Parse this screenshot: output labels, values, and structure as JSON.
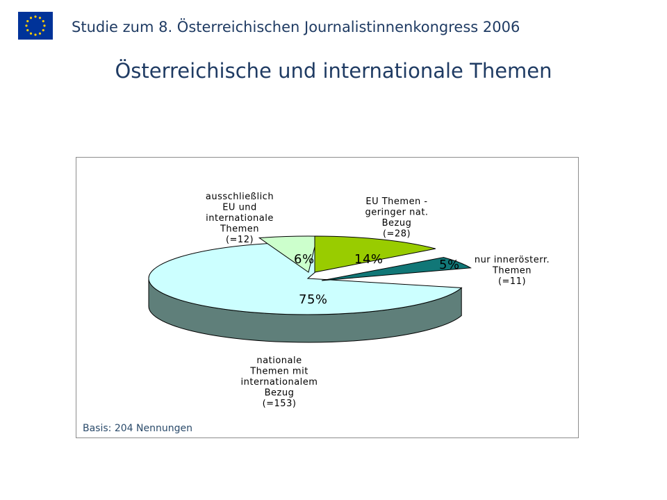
{
  "header": {
    "title": "Studie zum 8. Österreichischen Journalistinnenkongress  2006",
    "flag_icon": "eu-flag-icon"
  },
  "slide": {
    "title": "Österreichische und internationale Themen"
  },
  "colors": {
    "title": "#1f3b63",
    "national": "#ccffff",
    "national_side": "#5f7f7a",
    "international": "#ccffcc",
    "international_side": "#4b6b4b",
    "eu": "#99cc00",
    "eu_side": "#5a7a00",
    "inner": "#117777",
    "inner_side": "#003c3c"
  },
  "chart_data": {
    "type": "pie",
    "title": "",
    "slices": [
      {
        "key": "national",
        "label": [
          "nationale",
          "Themen mit",
          "internationalem",
          "Bezug",
          "(=153)"
        ],
        "count": 153,
        "percent": 75,
        "percent_label": "75%"
      },
      {
        "key": "international",
        "label": [
          "ausschließlich",
          "EU und",
          "internationale",
          "Themen",
          "(=12)"
        ],
        "count": 12,
        "percent": 6,
        "percent_label": "6%"
      },
      {
        "key": "eu",
        "label": [
          "EU Themen -",
          "geringer nat.",
          "Bezug",
          "(=28)"
        ],
        "count": 28,
        "percent": 14,
        "percent_label": "14%"
      },
      {
        "key": "inner",
        "label": [
          "nur innerösterr.",
          "Themen",
          "(=11)"
        ],
        "count": 11,
        "percent": 5,
        "percent_label": "5%"
      }
    ],
    "note": "Basis: 204 Nennungen"
  }
}
